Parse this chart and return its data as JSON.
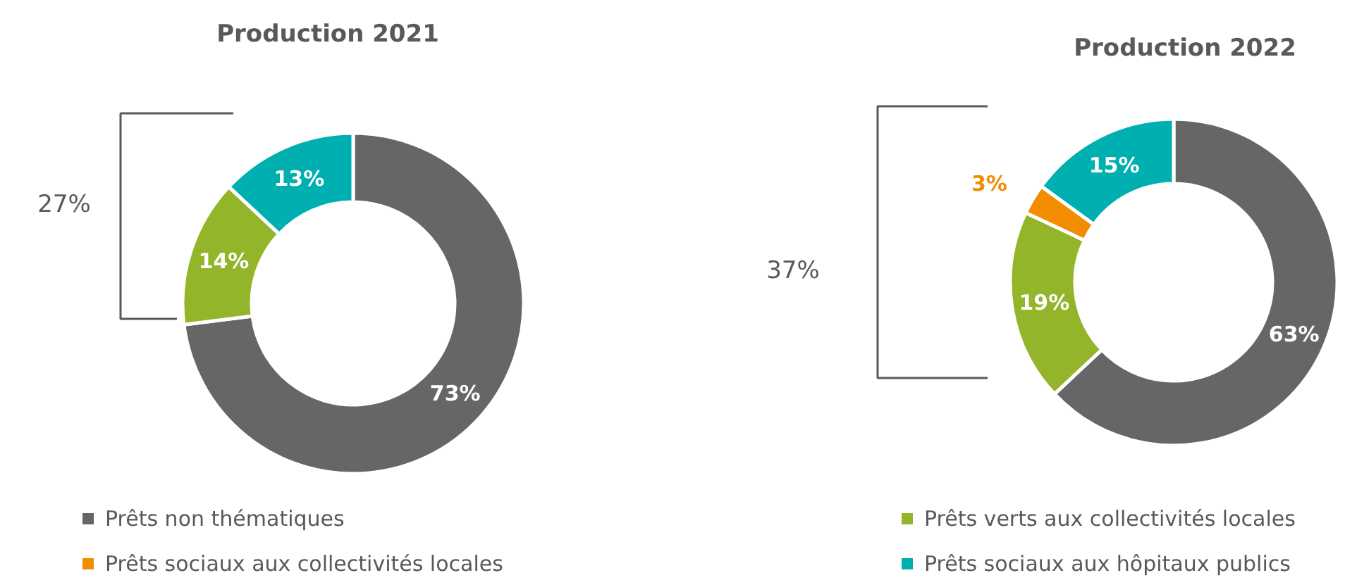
{
  "chart_data": [
    {
      "type": "donut",
      "title": "Production 2021",
      "categories": [
        "Prêts non thématiques",
        "Prêts verts aux collectivités locales",
        "Prêts sociaux aux collectivités locales",
        "Prêts sociaux aux hôpitaux publics"
      ],
      "values": [
        73,
        14,
        0,
        13
      ],
      "colors": [
        "#666666",
        "#92b529",
        "#f28c00",
        "#00b0b0"
      ],
      "value_labels": [
        "73%",
        "14%",
        null,
        "13%"
      ],
      "annotations": [
        "27%"
      ],
      "legend": "bottom"
    },
    {
      "type": "donut",
      "title": "Production 2022",
      "categories": [
        null,
        null,
        null,
        null
      ],
      "values": [
        63,
        19,
        3,
        15
      ],
      "colors": [
        "#666666",
        "#92b529",
        "#f28c00",
        "#00b0b0"
      ],
      "value_labels": [
        "63%",
        "19%",
        "3%",
        "15%"
      ],
      "annotations": [
        "37%"
      ],
      "legend": false
    }
  ]
}
